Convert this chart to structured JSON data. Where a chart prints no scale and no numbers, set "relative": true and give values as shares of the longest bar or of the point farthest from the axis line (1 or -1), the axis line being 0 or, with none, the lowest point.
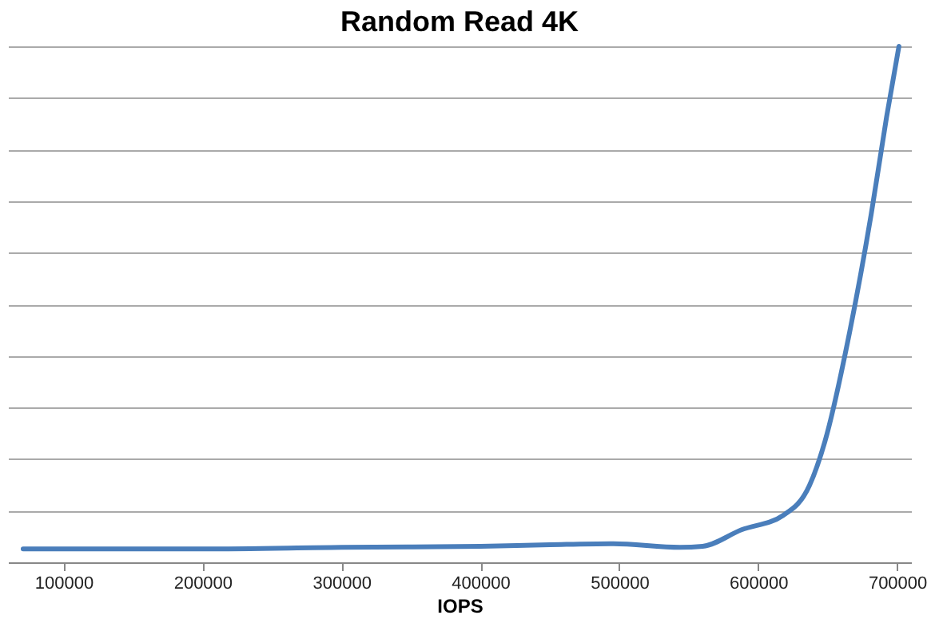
{
  "chart_data": {
    "type": "line",
    "title": "Random Read 4K",
    "xlabel": "IOPS",
    "relative": true,
    "x": [
      70900,
      200000,
      300000,
      400000,
      450000,
      495800,
      543600,
      560000,
      588000,
      618000,
      636900,
      648000,
      665800,
      681300,
      692400,
      701300
    ],
    "series": [
      {
        "color": "#4a7ebb",
        "values": [
          0.026,
          0.026,
          0.029,
          0.031,
          0.034,
          0.036,
          0.029,
          0.031,
          0.063,
          0.091,
          0.149,
          0.234,
          0.446,
          0.674,
          0.863,
          1
        ]
      }
    ],
    "xlim": [
      60000,
      710000
    ],
    "xticks": [
      100000,
      200000,
      300000,
      400000,
      500000,
      600000,
      700000
    ],
    "grid": "y",
    "legend": false,
    "marker": "none",
    "line_style": "solid"
  }
}
